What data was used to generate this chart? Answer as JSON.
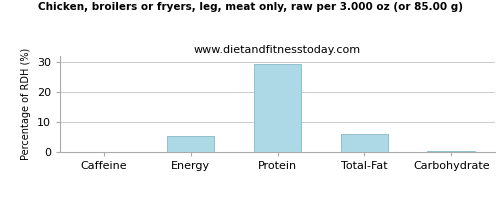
{
  "title": "Chicken, broilers or fryers, leg, meat only, raw per 3.000 oz (or 85.00 g)",
  "subtitle": "www.dietandfitnesstoday.com",
  "categories": [
    "Caffeine",
    "Energy",
    "Protein",
    "Total-Fat",
    "Carbohydrate"
  ],
  "values": [
    0,
    5.2,
    29.2,
    6.1,
    0.4
  ],
  "bar_color": "#add8e6",
  "bar_edgecolor": "#8fbfcf",
  "ylabel": "Percentage of RDH (%)",
  "ylim": [
    0,
    32
  ],
  "yticks": [
    0,
    10,
    20,
    30
  ],
  "title_fontsize": 7.5,
  "subtitle_fontsize": 8,
  "ylabel_fontsize": 7,
  "xlabel_fontsize": 8,
  "tick_fontsize": 8,
  "background_color": "#ffffff",
  "grid_color": "#cccccc",
  "spine_color": "#aaaaaa"
}
